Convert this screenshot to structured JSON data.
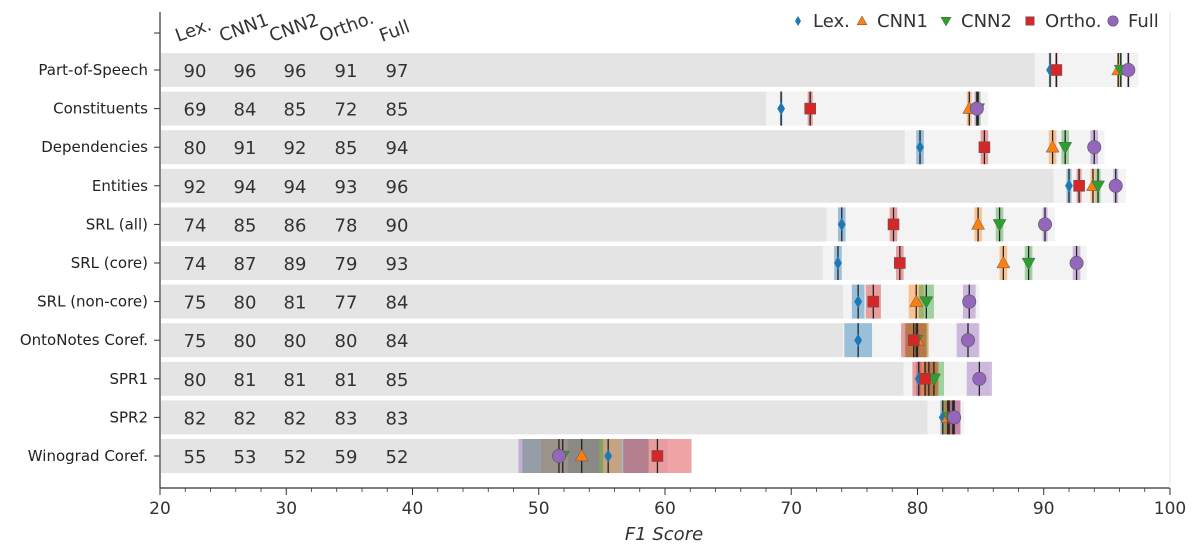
{
  "chart_data": {
    "type": "scatter",
    "xlabel": "F1 Score",
    "xlim": [
      20,
      100
    ],
    "xticks": [
      "20",
      "30",
      "40",
      "50",
      "60",
      "70",
      "80",
      "90",
      "100"
    ],
    "column_headers": [
      "Lex.",
      "CNN1",
      "CNN2",
      "Ortho.",
      "Full"
    ],
    "legend": {
      "position": "top-right",
      "entries": [
        {
          "name": "Lex.",
          "marker": "diamond",
          "color": "#1f77b4"
        },
        {
          "name": "CNN1",
          "marker": "triangle-up",
          "color": "#ff7f0e"
        },
        {
          "name": "CNN2",
          "marker": "triangle-down",
          "color": "#2ca02c"
        },
        {
          "name": "Ortho.",
          "marker": "square",
          "color": "#d62728"
        },
        {
          "name": "Full",
          "marker": "circle",
          "color": "#9467bd"
        }
      ]
    },
    "categories": [
      "Part-of-Speech",
      "Constituents",
      "Dependencies",
      "Entities",
      "SRL (all)",
      "SRL (core)",
      "SRL (non-core)",
      "OntoNotes Coref.",
      "SPR1",
      "SPR2",
      "Winograd Coref."
    ],
    "score_table": [
      [
        "90",
        "96",
        "96",
        "91",
        "97"
      ],
      [
        "69",
        "84",
        "85",
        "72",
        "85"
      ],
      [
        "80",
        "91",
        "92",
        "85",
        "94"
      ],
      [
        "92",
        "94",
        "94",
        "93",
        "96"
      ],
      [
        "74",
        "85",
        "86",
        "78",
        "90"
      ],
      [
        "74",
        "87",
        "89",
        "79",
        "93"
      ],
      [
        "75",
        "80",
        "81",
        "77",
        "84"
      ],
      [
        "75",
        "80",
        "80",
        "80",
        "84"
      ],
      [
        "80",
        "81",
        "81",
        "81",
        "85"
      ],
      [
        "82",
        "82",
        "82",
        "83",
        "83"
      ],
      [
        "55",
        "53",
        "52",
        "59",
        "52"
      ]
    ],
    "series": [
      {
        "name": "Lex.",
        "values": [
          90.5,
          69.2,
          80.2,
          92.0,
          74.0,
          73.7,
          75.3,
          75.3,
          80.1,
          82.0,
          55.5
        ]
      },
      {
        "name": "CNN1",
        "values": [
          95.9,
          84.1,
          90.7,
          93.9,
          84.8,
          86.8,
          79.9,
          80.0,
          80.9,
          82.4,
          53.4
        ]
      },
      {
        "name": "CNN2",
        "values": [
          96.1,
          84.8,
          91.7,
          94.3,
          86.5,
          88.8,
          80.7,
          79.9,
          81.3,
          82.5,
          51.9
        ]
      },
      {
        "name": "Ortho.",
        "values": [
          91.0,
          71.5,
          85.3,
          92.8,
          78.1,
          78.6,
          76.5,
          79.7,
          80.6,
          82.8,
          59.4
        ]
      },
      {
        "name": "Full",
        "values": [
          96.7,
          84.7,
          94.0,
          95.7,
          90.1,
          92.6,
          84.1,
          84.0,
          84.9,
          82.9,
          51.6
        ]
      }
    ],
    "ci_halfwidth": {
      "Lex.": [
        0.1,
        0.1,
        0.3,
        0.2,
        0.3,
        0.3,
        0.5,
        1.1,
        0.2,
        0.2,
        3.2
      ],
      "CNN1": [
        0.1,
        0.2,
        0.3,
        0.2,
        0.3,
        0.3,
        0.6,
        0.9,
        0.8,
        0.5,
        3.2
      ],
      "CNN2": [
        0.1,
        0.2,
        0.3,
        0.2,
        0.3,
        0.3,
        0.6,
        0.9,
        0.8,
        0.5,
        3.2
      ],
      "Ortho.": [
        0.1,
        0.2,
        0.3,
        0.2,
        0.3,
        0.3,
        0.6,
        1.0,
        1.0,
        0.6,
        2.7
      ],
      "Full": [
        0.1,
        0.2,
        0.3,
        0.2,
        0.2,
        0.3,
        0.5,
        0.9,
        1.0,
        0.5,
        3.2
      ]
    },
    "bar_color": "#e4e4e4",
    "bar_fade_color": "#f3f3f3",
    "grid": false
  }
}
